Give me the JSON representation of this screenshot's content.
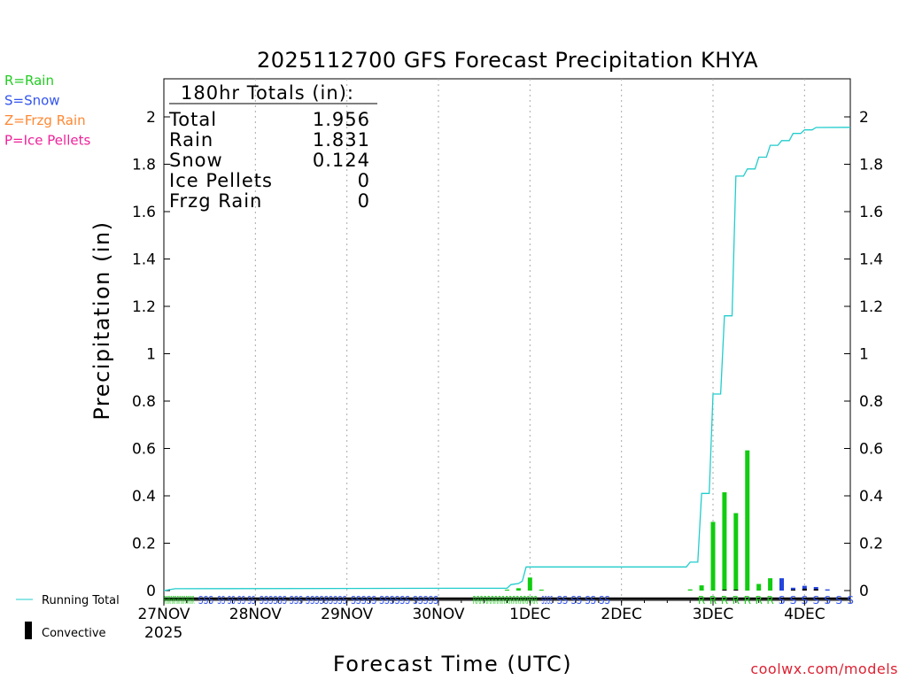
{
  "chart_data": {
    "type": "bar",
    "title": "2025112700 GFS Forecast Precipitation KHYA",
    "xlabel": "Forecast Time (UTC)",
    "ylabel": "Precipitation (in)",
    "ylim": [
      0,
      2.1
    ],
    "y_ticks": [
      "0",
      "0.2",
      "0.4",
      "0.6",
      "0.8",
      "1",
      "1.2",
      "1.4",
      "1.6",
      "1.8",
      "2"
    ],
    "x_range_hours": [
      0,
      180
    ],
    "x_ticks": [
      {
        "label": "27NOV",
        "hour": 0
      },
      {
        "label": "28NOV",
        "hour": 24
      },
      {
        "label": "29NOV",
        "hour": 48
      },
      {
        "label": "30NOV",
        "hour": 72
      },
      {
        "label": "1DEC",
        "hour": 96
      },
      {
        "label": "2DEC",
        "hour": 120
      },
      {
        "label": "3DEC",
        "hour": 144
      },
      {
        "label": "4DEC",
        "hour": 168
      }
    ],
    "year_label": "2025",
    "legend_types": [
      {
        "text": "R=Rain",
        "color": "#22cc22"
      },
      {
        "text": "S=Snow",
        "color": "#3355ee"
      },
      {
        "text": "Z=Frzg Rain",
        "color": "#ff8833"
      },
      {
        "text": "P=Ice Pellets",
        "color": "#ee2299"
      }
    ],
    "legend_lines": {
      "running_total": "Running Total",
      "convective": "Convective"
    },
    "totals": {
      "header": "180hr Totals (in):",
      "rows": [
        {
          "label": "Total",
          "value": "1.956"
        },
        {
          "label": "Rain",
          "value": "1.831"
        },
        {
          "label": "Snow",
          "value": "0.124"
        },
        {
          "label": "Ice Pellets",
          "value": "0"
        },
        {
          "label": "Frzg Rain",
          "value": "0"
        }
      ]
    },
    "series": [
      {
        "name": "Precip Rain",
        "color": "#11cc11",
        "points": [
          {
            "hour": 90,
            "value": 0.004
          },
          {
            "hour": 93,
            "value": 0.01
          },
          {
            "hour": 96,
            "value": 0.055
          },
          {
            "hour": 99,
            "value": 0.004
          },
          {
            "hour": 138,
            "value": 0.005
          },
          {
            "hour": 141,
            "value": 0.022
          },
          {
            "hour": 144,
            "value": 0.29
          },
          {
            "hour": 147,
            "value": 0.415
          },
          {
            "hour": 150,
            "value": 0.327
          },
          {
            "hour": 153,
            "value": 0.592
          },
          {
            "hour": 156,
            "value": 0.028
          },
          {
            "hour": 159,
            "value": 0.052
          }
        ]
      },
      {
        "name": "Precip Snow",
        "color": "#2244dd",
        "points": [
          {
            "hour": 162,
            "value": 0.052
          },
          {
            "hour": 165,
            "value": 0.012
          },
          {
            "hour": 168,
            "value": 0.02
          },
          {
            "hour": 171,
            "value": 0.015
          },
          {
            "hour": 174,
            "value": 0.005
          }
        ]
      },
      {
        "name": "Convective",
        "color": "#000000",
        "points": [
          {
            "hour": 147,
            "value": 0.004
          },
          {
            "hour": 150,
            "value": 0.004
          },
          {
            "hour": 165,
            "value": 0.004
          },
          {
            "hour": 168,
            "value": 0.008
          },
          {
            "hour": 171,
            "value": 0.006
          }
        ]
      },
      {
        "name": "Running Total",
        "color": "#22cccc",
        "type": "line",
        "points": [
          {
            "hour": 0,
            "value": 0.0
          },
          {
            "hour": 3,
            "value": 0.008
          },
          {
            "hour": 90,
            "value": 0.01
          },
          {
            "hour": 91,
            "value": 0.025
          },
          {
            "hour": 93,
            "value": 0.03
          },
          {
            "hour": 94,
            "value": 0.04
          },
          {
            "hour": 95,
            "value": 0.1
          },
          {
            "hour": 137,
            "value": 0.1
          },
          {
            "hour": 138,
            "value": 0.12
          },
          {
            "hour": 140,
            "value": 0.12
          },
          {
            "hour": 141,
            "value": 0.41
          },
          {
            "hour": 143,
            "value": 0.41
          },
          {
            "hour": 144,
            "value": 0.83
          },
          {
            "hour": 146,
            "value": 0.83
          },
          {
            "hour": 147,
            "value": 1.16
          },
          {
            "hour": 149,
            "value": 1.16
          },
          {
            "hour": 150,
            "value": 1.75
          },
          {
            "hour": 152,
            "value": 1.75
          },
          {
            "hour": 153,
            "value": 1.78
          },
          {
            "hour": 155,
            "value": 1.78
          },
          {
            "hour": 156,
            "value": 1.83
          },
          {
            "hour": 158,
            "value": 1.83
          },
          {
            "hour": 159,
            "value": 1.88
          },
          {
            "hour": 161,
            "value": 1.88
          },
          {
            "hour": 162,
            "value": 1.9
          },
          {
            "hour": 164,
            "value": 1.9
          },
          {
            "hour": 165,
            "value": 1.93
          },
          {
            "hour": 167,
            "value": 1.93
          },
          {
            "hour": 168,
            "value": 1.945
          },
          {
            "hour": 170,
            "value": 1.945
          },
          {
            "hour": 171,
            "value": 1.955
          },
          {
            "hour": 180,
            "value": 1.956
          }
        ]
      }
    ],
    "ptype_strip": {
      "segments": [
        {
          "start": 0,
          "end": 8,
          "type": "R",
          "text": "RRRRRRRRRRRRRR"
        },
        {
          "start": 9,
          "end": 13,
          "type": "S",
          "text": "SSS"
        },
        {
          "start": 14,
          "end": 24,
          "type": "S",
          "text": "SS SS SS SS"
        },
        {
          "start": 25,
          "end": 48,
          "type": "S",
          "text": "SSSSSS SSS SSSSSSSSS"
        },
        {
          "start": 49,
          "end": 72,
          "type": "S",
          "text": "SSSSS SSSSSS SSSSS"
        },
        {
          "start": 81,
          "end": 98,
          "type": "R",
          "text": "RRRRRRRRRRRRRRRRRR"
        },
        {
          "start": 99,
          "end": 102,
          "type": "S",
          "text": "SSSS"
        },
        {
          "start": 103,
          "end": 117,
          "type": "S",
          "text": "SS SS SS SS"
        }
      ],
      "markers": [
        {
          "hour": 141,
          "type": "R",
          "text": "R"
        },
        {
          "hour": 144,
          "type": "R",
          "text": "R"
        },
        {
          "hour": 147,
          "type": "R",
          "text": "R"
        },
        {
          "hour": 150,
          "type": "R",
          "text": "R"
        },
        {
          "hour": 153,
          "type": "R",
          "text": "R"
        },
        {
          "hour": 156,
          "type": "R",
          "text": "R"
        },
        {
          "hour": 159,
          "type": "R",
          "text": "R"
        },
        {
          "hour": 162,
          "type": "S",
          "text": "S"
        },
        {
          "hour": 165,
          "type": "S",
          "text": "S"
        },
        {
          "hour": 168,
          "type": "S",
          "text": "S"
        },
        {
          "hour": 171,
          "type": "S",
          "text": "S"
        },
        {
          "hour": 174,
          "type": "S",
          "text": "S"
        },
        {
          "hour": 177,
          "type": "S",
          "text": "S"
        },
        {
          "hour": 180,
          "type": "S",
          "text": "S"
        }
      ]
    },
    "watermark": "coolwx.com/models"
  }
}
